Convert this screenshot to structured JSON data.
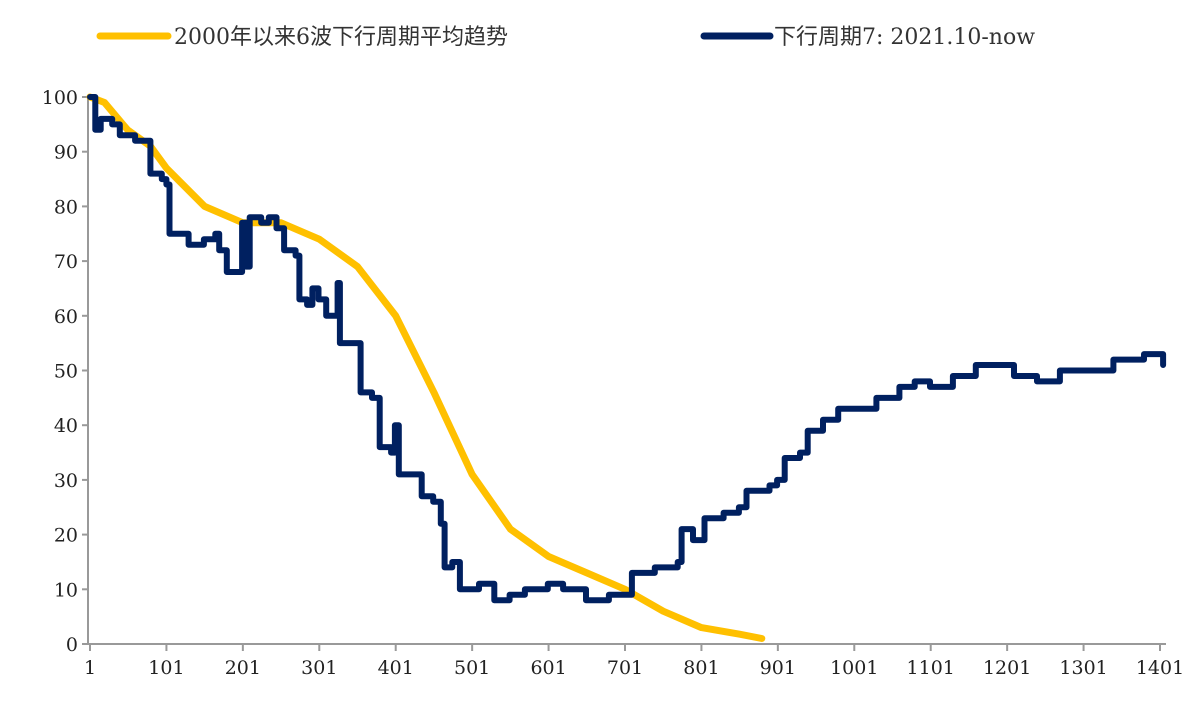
{
  "chart_data": {
    "type": "line",
    "title": "",
    "xlabel": "",
    "ylabel": "",
    "xlim": [
      1,
      1405
    ],
    "ylim": [
      0,
      100
    ],
    "x_ticks": [
      "1",
      "101",
      "201",
      "301",
      "401",
      "501",
      "601",
      "701",
      "801",
      "901",
      "1001",
      "1101",
      "1201",
      "1301",
      "1401"
    ],
    "y_ticks": [
      "0",
      "10",
      "20",
      "30",
      "40",
      "50",
      "60",
      "70",
      "80",
      "90",
      "100"
    ],
    "grid": false,
    "legend_position": "top",
    "series": [
      {
        "name": "2000年以来6波下行周期平均趋势",
        "color": "#FFC000",
        "x": [
          1,
          20,
          50,
          80,
          101,
          151,
          201,
          251,
          301,
          351,
          401,
          451,
          501,
          551,
          601,
          651,
          701,
          751,
          801,
          851,
          880
        ],
        "y": [
          100,
          99,
          94,
          91,
          87,
          80,
          77,
          77,
          74,
          69,
          60,
          46,
          31,
          21,
          16,
          13,
          10,
          6,
          3,
          1.8,
          1
        ]
      },
      {
        "name": "下行周期7: 2021.10-now",
        "color": "#002060",
        "x": [
          1,
          8,
          15,
          30,
          40,
          60,
          75,
          80,
          95,
          101,
          105,
          120,
          130,
          150,
          165,
          170,
          180,
          195,
          200,
          205,
          210,
          225,
          235,
          245,
          255,
          270,
          275,
          285,
          292,
          300,
          310,
          320,
          325,
          328,
          345,
          355,
          370,
          380,
          395,
          400,
          405,
          425,
          435,
          450,
          460,
          465,
          475,
          485,
          500,
          510,
          530,
          550,
          570,
          600,
          620,
          650,
          680,
          705,
          710,
          740,
          770,
          775,
          790,
          805,
          830,
          850,
          860,
          890,
          900,
          910,
          930,
          940,
          960,
          980,
          1000,
          1030,
          1060,
          1080,
          1100,
          1130,
          1160,
          1200,
          1210,
          1240,
          1270,
          1300,
          1340,
          1380,
          1401,
          1405
        ],
        "y": [
          100,
          94,
          96,
          95,
          93,
          92,
          92,
          86,
          85,
          84,
          75,
          75,
          73,
          74,
          75,
          72,
          68,
          68,
          77,
          69,
          78,
          77,
          78,
          76,
          72,
          71,
          63,
          62,
          65,
          63,
          60,
          60,
          66,
          55,
          55,
          46,
          45,
          36,
          35,
          40,
          31,
          31,
          27,
          26,
          22,
          14,
          15,
          10,
          10,
          11,
          8,
          9,
          10,
          11,
          10,
          8,
          9,
          9,
          13,
          14,
          15,
          21,
          19,
          23,
          24,
          25,
          28,
          29,
          30,
          34,
          35,
          39,
          41,
          43,
          43,
          45,
          47,
          48,
          47,
          49,
          51,
          51,
          49,
          48,
          50,
          50,
          52,
          53,
          53,
          51
        ]
      }
    ]
  }
}
